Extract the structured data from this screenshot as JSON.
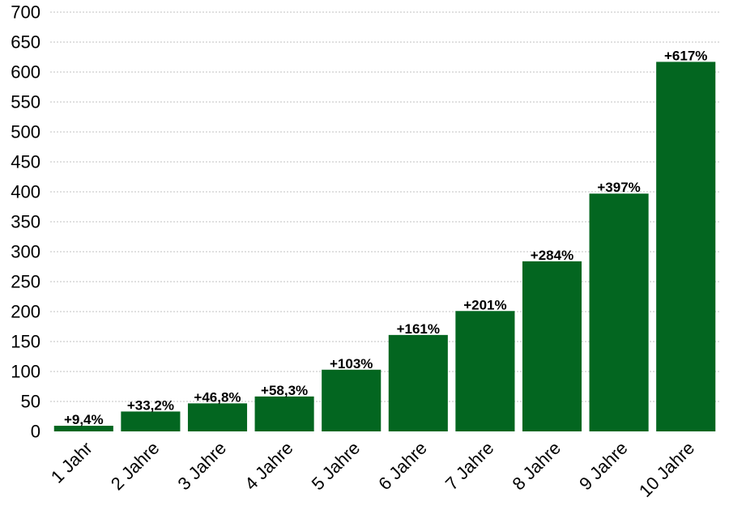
{
  "chart_data": {
    "type": "bar",
    "categories": [
      "1 Jahr",
      "2 Jahre",
      "3 Jahre",
      "4 Jahre",
      "5 Jahre",
      "6 Jahre",
      "7 Jahre",
      "8 Jahre",
      "9 Jahre",
      "10 Jahre"
    ],
    "values": [
      9.4,
      33.2,
      46.8,
      58.3,
      103,
      161,
      201,
      284,
      397,
      617
    ],
    "data_labels": [
      "+9,4%",
      "+33,2%",
      "+46,8%",
      "+58,3%",
      "+103%",
      "+161%",
      "+201%",
      "+284%",
      "+397%",
      "+617%"
    ],
    "ylim": [
      0,
      700
    ],
    "yticks": [
      0,
      50,
      100,
      150,
      200,
      250,
      300,
      350,
      400,
      450,
      500,
      550,
      600,
      650,
      700
    ],
    "grid": true,
    "bar_color": "#036620"
  }
}
